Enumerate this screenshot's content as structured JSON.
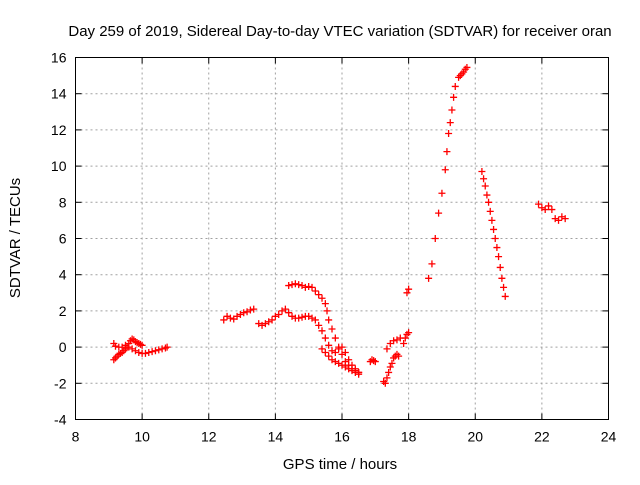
{
  "chart_data": {
    "type": "scatter",
    "title": "Day 259 of 2019, Sidereal Day-to-day VTEC variation (SDTVAR) for receiver oran",
    "xlabel": "GPS time / hours",
    "ylabel": "SDTVAR / TECUs",
    "xlim": [
      8,
      24
    ],
    "ylim": [
      -4,
      16
    ],
    "xticks": [
      8,
      10,
      12,
      14,
      16,
      18,
      20,
      22,
      24
    ],
    "yticks": [
      -4,
      -2,
      0,
      2,
      4,
      6,
      8,
      10,
      12,
      14,
      16
    ],
    "grid": true,
    "marker": "+",
    "colors": {
      "series": "#ff0000",
      "grid": "#a0a0a0",
      "axis": "#000000"
    },
    "series": [
      {
        "name": "SDTVAR",
        "x": [
          9.15,
          9.2,
          9.25,
          9.3,
          9.35,
          9.4,
          9.45,
          9.5,
          9.55,
          9.6,
          9.65,
          9.7,
          9.75,
          9.8,
          9.85,
          9.9,
          9.95,
          10.0,
          9.15,
          9.2,
          9.3,
          9.4,
          9.5,
          9.6,
          9.7,
          9.8,
          9.9,
          10.0,
          10.1,
          10.2,
          10.3,
          10.4,
          10.5,
          10.6,
          10.7,
          10.75,
          12.45,
          12.55,
          12.65,
          12.75,
          12.85,
          12.95,
          13.05,
          13.15,
          13.25,
          13.35,
          13.5,
          13.6,
          13.7,
          13.8,
          13.9,
          14.0,
          14.1,
          14.2,
          14.3,
          14.4,
          14.5,
          14.6,
          14.7,
          14.8,
          14.9,
          15.0,
          15.1,
          15.2,
          15.3,
          15.4,
          15.5,
          15.6,
          15.7,
          15.8,
          15.9,
          16.0,
          16.1,
          16.2,
          16.3,
          16.4,
          16.5,
          14.4,
          14.5,
          14.6,
          14.7,
          14.8,
          14.9,
          15.0,
          15.1,
          15.2,
          15.3,
          15.4,
          15.5,
          15.55,
          15.6,
          15.7,
          15.8,
          15.9,
          16.0,
          16.1,
          16.2,
          16.3,
          16.4,
          16.5,
          15.4,
          15.5,
          15.6,
          15.7,
          15.8,
          15.9,
          16.0,
          16.1,
          16.2,
          16.3,
          16.4,
          16.5,
          16.85,
          16.9,
          16.95,
          17.0,
          17.25,
          17.3,
          17.35,
          17.4,
          17.45,
          17.5,
          17.55,
          17.6,
          17.65,
          17.7,
          17.35,
          17.45,
          17.55,
          17.65,
          17.75,
          17.85,
          17.9,
          17.95,
          18.0,
          17.95,
          18.0,
          18.6,
          18.7,
          18.8,
          18.9,
          19.0,
          19.1,
          19.15,
          19.2,
          19.25,
          19.3,
          19.35,
          19.4,
          19.5,
          19.55,
          19.6,
          19.65,
          19.7,
          19.75,
          20.2,
          20.25,
          20.3,
          20.35,
          20.4,
          20.45,
          20.5,
          20.55,
          20.6,
          20.65,
          20.7,
          20.75,
          20.8,
          20.85,
          20.9,
          21.9,
          22.0,
          22.1,
          22.2,
          22.3,
          22.4,
          22.5,
          22.6,
          22.7
        ],
        "y": [
          -0.7,
          -0.6,
          -0.5,
          -0.4,
          -0.35,
          -0.3,
          -0.2,
          -0.1,
          0.0,
          0.2,
          0.35,
          0.45,
          0.4,
          0.3,
          0.25,
          0.2,
          0.15,
          0.1,
          0.2,
          0.05,
          0.0,
          0.0,
          0.1,
          0.0,
          -0.1,
          -0.2,
          -0.3,
          -0.35,
          -0.35,
          -0.3,
          -0.25,
          -0.2,
          -0.15,
          -0.1,
          -0.05,
          0.0,
          1.5,
          1.7,
          1.6,
          1.55,
          1.7,
          1.8,
          1.9,
          1.95,
          2.05,
          2.1,
          1.3,
          1.2,
          1.3,
          1.4,
          1.5,
          1.7,
          1.8,
          2.0,
          2.1,
          1.9,
          1.7,
          1.6,
          1.6,
          1.65,
          1.7,
          1.7,
          1.6,
          1.5,
          1.2,
          0.9,
          0.5,
          0.1,
          -0.2,
          -0.3,
          -0.1,
          0.0,
          -0.3,
          -0.7,
          -1.0,
          -1.2,
          -1.4,
          3.4,
          3.45,
          3.5,
          3.45,
          3.4,
          3.3,
          3.35,
          3.3,
          3.1,
          2.9,
          2.7,
          2.4,
          2.0,
          1.5,
          1.0,
          0.5,
          0.0,
          -0.4,
          -0.8,
          -1.0,
          -1.2,
          -1.3,
          -1.4,
          -0.1,
          -0.3,
          -0.5,
          -0.7,
          -0.8,
          -0.9,
          -1.0,
          -1.1,
          -1.2,
          -1.3,
          -1.4,
          -1.5,
          -0.8,
          -0.7,
          -0.75,
          -0.8,
          -1.9,
          -2.0,
          -1.7,
          -1.4,
          -1.1,
          -0.9,
          -0.6,
          -0.5,
          -0.4,
          -0.5,
          -0.1,
          0.2,
          0.35,
          0.4,
          0.5,
          0.2,
          0.5,
          0.7,
          0.8,
          3.0,
          3.2,
          3.8,
          4.6,
          6.0,
          7.4,
          8.5,
          9.8,
          10.8,
          11.8,
          12.4,
          13.1,
          13.8,
          14.4,
          14.9,
          15.0,
          15.1,
          15.2,
          15.35,
          15.45,
          9.7,
          9.3,
          8.9,
          8.4,
          8.0,
          7.5,
          7.0,
          6.5,
          6.0,
          5.5,
          5.0,
          4.4,
          3.8,
          3.3,
          2.8,
          7.9,
          7.7,
          7.6,
          7.8,
          7.6,
          7.1,
          7.0,
          7.2,
          7.1
        ]
      }
    ]
  }
}
